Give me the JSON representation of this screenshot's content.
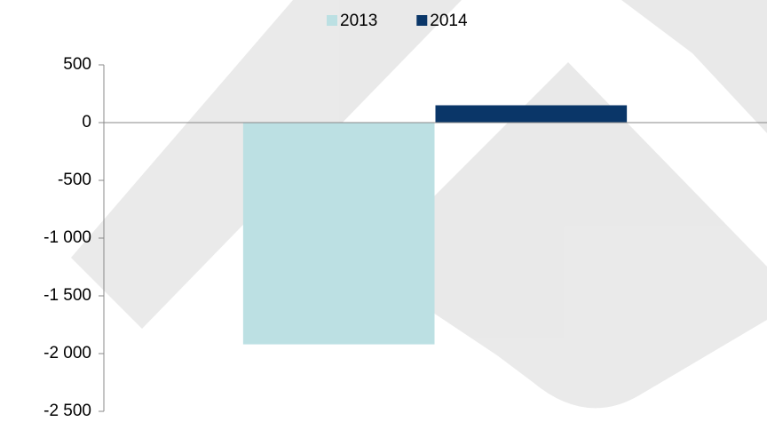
{
  "chart_data": {
    "type": "bar",
    "categories": [
      null
    ],
    "series": [
      {
        "name": "2013",
        "color": "#bce0e3",
        "values": [
          -1920
        ]
      },
      {
        "name": "2014",
        "color": "#0a3668",
        "values": [
          150
        ]
      }
    ],
    "ylim": [
      -2500,
      500
    ],
    "yticks": [
      {
        "value": -2500,
        "label": "-2 500"
      },
      {
        "value": -2000,
        "label": "-2 000"
      },
      {
        "value": -1500,
        "label": "-1 500"
      },
      {
        "value": -1000,
        "label": "-1 000"
      },
      -500,
      0,
      500
    ],
    "legend": "top"
  }
}
